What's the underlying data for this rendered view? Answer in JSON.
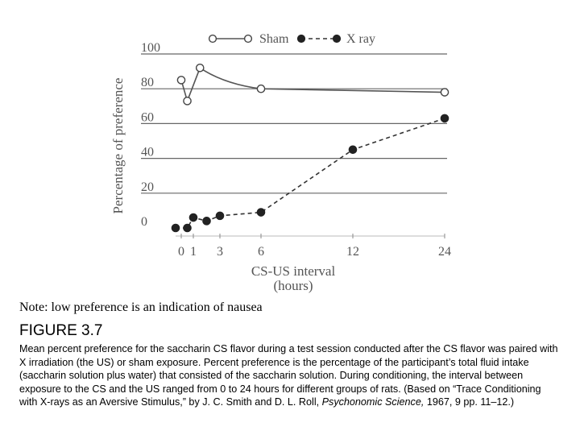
{
  "chart_data": {
    "type": "line",
    "xlabel": "CS-US interval",
    "xlabel_unit": "(hours)",
    "ylabel": "Percentage of preference",
    "ylim": [
      0,
      100
    ],
    "yticks": [
      0,
      20,
      40,
      60,
      80,
      100
    ],
    "xtick_values": [
      0,
      1,
      3,
      6,
      12,
      24
    ],
    "grid_y": true,
    "legend_position": "top",
    "series": [
      {
        "name": "Sham",
        "marker": "open-circle",
        "line_style": "solid",
        "color": "#555555",
        "points": [
          [
            0,
            85
          ],
          [
            0.5,
            73
          ],
          [
            1.5,
            92
          ],
          [
            6,
            80
          ],
          [
            24,
            78
          ]
        ]
      },
      {
        "name": "X ray",
        "marker": "filled-circle",
        "line_style": "dashed",
        "color": "#333333",
        "points": [
          [
            -0.5,
            0
          ],
          [
            0.5,
            0
          ],
          [
            1,
            6
          ],
          [
            2,
            4
          ],
          [
            3,
            7
          ],
          [
            6,
            9
          ],
          [
            12,
            45
          ],
          [
            24,
            63
          ]
        ]
      }
    ]
  },
  "note": "Note: low preference is an indication of nausea",
  "figure": {
    "title": "FIGURE 3.7",
    "caption_main": "Mean percent preference for the saccharin CS flavor during a test session conducted after the CS flavor was paired with X irradiation (the US) or sham exposure. Percent preference is the percentage of the participant’s total fluid intake (saccharin solution plus water) that consisted of the saccharin solution. During conditioning, the interval between exposure to the CS and the US ranged from 0 to 24 hours for different groups of rats. (Based on “Trace Conditioning with X-rays as an Aversive Stimulus,” by J. C. Smith and D. L. Roll, ",
    "caption_journal": "Psychonomic Science,",
    "caption_tail": " 1967, 9 pp. 11–12.)"
  }
}
